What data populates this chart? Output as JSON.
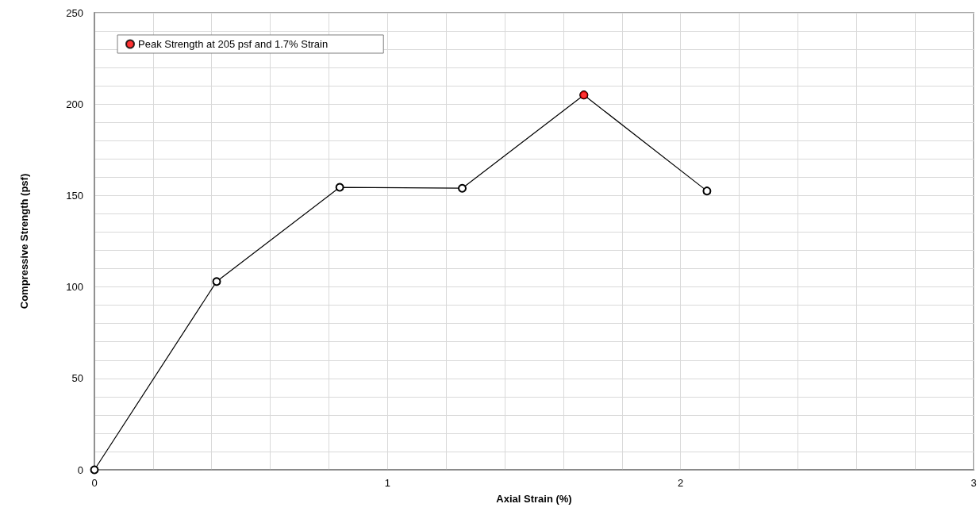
{
  "chart_data": {
    "type": "line",
    "xlabel": "Axial Strain (%)",
    "ylabel": "Compressive Strength (psf)",
    "series": [
      {
        "color": "#000000",
        "marker": "circle",
        "x": [
          0,
          0.417,
          0.837,
          1.255,
          1.67,
          2.09
        ],
        "values": [
          0,
          103,
          154.5,
          154,
          205,
          152.5
        ]
      },
      {
        "type": "scatter",
        "name": "Peak Strength at 205 psf and 1.7% Strain",
        "color": "#ff0000",
        "marker": "circle",
        "x": [
          1.67
        ],
        "values": [
          205
        ]
      }
    ],
    "xlim": [
      0,
      3
    ],
    "xticks": [
      0,
      {
        "value": 0.2,
        "label": null
      },
      {
        "value": 0.4,
        "label": null
      },
      {
        "value": 0.6,
        "label": null
      },
      {
        "value": 0.8,
        "label": null
      },
      1,
      {
        "value": 1.2,
        "label": null
      },
      {
        "value": 1.4,
        "label": null
      },
      {
        "value": 1.6,
        "label": null
      },
      {
        "value": 1.8,
        "label": null
      },
      2,
      {
        "value": 2.2,
        "label": null
      },
      {
        "value": 2.4,
        "label": null
      },
      {
        "value": 2.6,
        "label": null
      },
      {
        "value": 2.8,
        "label": null
      },
      3
    ],
    "ylim": [
      0,
      250
    ],
    "yticks": [
      0,
      {
        "value": 10,
        "label": null
      },
      {
        "value": 20,
        "label": null
      },
      {
        "value": 30,
        "label": null
      },
      {
        "value": 40,
        "label": null
      },
      50,
      {
        "value": 60,
        "label": null
      },
      {
        "value": 70,
        "label": null
      },
      {
        "value": 80,
        "label": null
      },
      {
        "value": 90,
        "label": null
      },
      100,
      {
        "value": 110,
        "label": null
      },
      {
        "value": 120,
        "label": null
      },
      {
        "value": 130,
        "label": null
      },
      {
        "value": 140,
        "label": null
      },
      150,
      {
        "value": 160,
        "label": null
      },
      {
        "value": 170,
        "label": null
      },
      {
        "value": 180,
        "label": null
      },
      {
        "value": 190,
        "label": null
      },
      200,
      {
        "value": 210,
        "label": null
      },
      {
        "value": 220,
        "label": null
      },
      {
        "value": 230,
        "label": null
      },
      {
        "value": 240,
        "label": null
      },
      250
    ],
    "grid": true,
    "legend": "top left"
  }
}
